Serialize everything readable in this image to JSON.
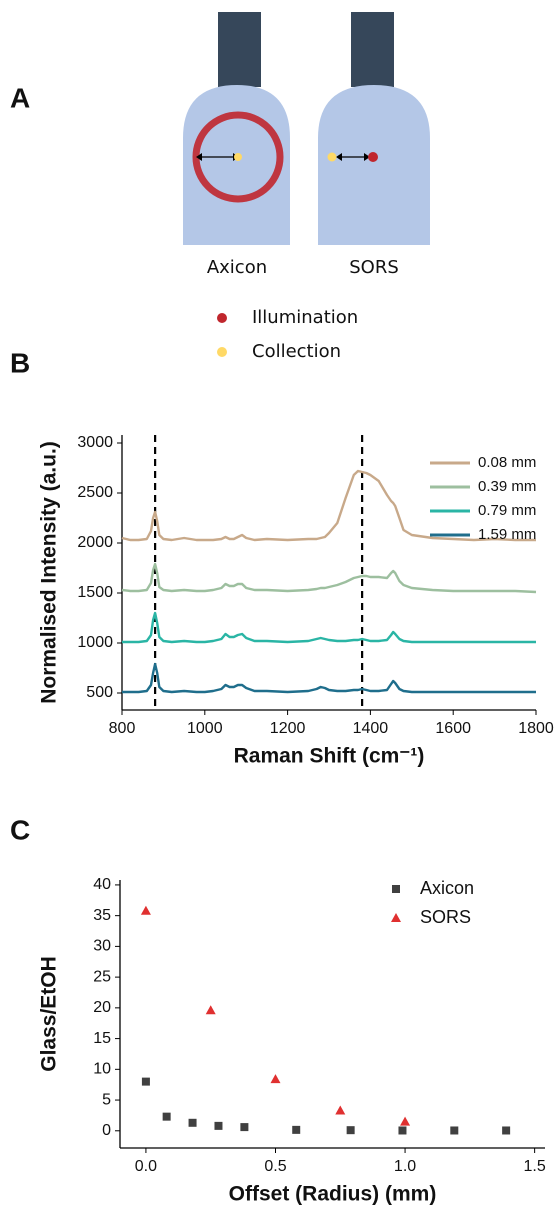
{
  "diagram": {
    "label": "A",
    "probes": [
      "Axicon",
      "SORS"
    ],
    "legend": [
      "Illumination",
      "Collection"
    ]
  },
  "chart_data": [
    {
      "type": "line",
      "panel": "B",
      "xlabel": "Raman Shift (cm⁻¹)",
      "ylabel": "Normalised Intensity (a.u.)",
      "x": [
        800,
        820,
        840,
        860,
        870,
        875,
        880,
        885,
        890,
        900,
        920,
        950,
        980,
        1000,
        1020,
        1040,
        1050,
        1060,
        1070,
        1080,
        1090,
        1100,
        1120,
        1150,
        1200,
        1250,
        1270,
        1280,
        1290,
        1300,
        1320,
        1340,
        1360,
        1370,
        1380,
        1390,
        1400,
        1420,
        1440,
        1450,
        1455,
        1460,
        1470,
        1480,
        1500,
        1550,
        1600,
        1650,
        1700,
        1750,
        1800
      ],
      "series": [
        {
          "name": "0.08 mm",
          "color": "#c8a98a",
          "values": [
            2050,
            2030,
            2030,
            2040,
            2120,
            2250,
            2310,
            2220,
            2080,
            2040,
            2030,
            2050,
            2030,
            2030,
            2030,
            2040,
            2060,
            2040,
            2040,
            2060,
            2080,
            2050,
            2030,
            2040,
            2030,
            2040,
            2040,
            2050,
            2060,
            2100,
            2200,
            2450,
            2680,
            2720,
            2710,
            2700,
            2680,
            2620,
            2480,
            2420,
            2400,
            2370,
            2250,
            2130,
            2080,
            2050,
            2040,
            2030,
            2040,
            2030,
            2030
          ]
        },
        {
          "name": "0.39 mm",
          "color": "#9dbf9f",
          "values": [
            1530,
            1520,
            1520,
            1530,
            1600,
            1730,
            1790,
            1700,
            1560,
            1530,
            1520,
            1530,
            1520,
            1520,
            1530,
            1550,
            1590,
            1570,
            1570,
            1590,
            1590,
            1550,
            1530,
            1530,
            1520,
            1530,
            1540,
            1550,
            1550,
            1560,
            1580,
            1610,
            1650,
            1660,
            1670,
            1670,
            1660,
            1660,
            1650,
            1700,
            1720,
            1700,
            1620,
            1580,
            1550,
            1530,
            1520,
            1520,
            1520,
            1520,
            1510
          ]
        },
        {
          "name": "0.79 mm",
          "color": "#2ab5a5",
          "values": [
            1010,
            1010,
            1010,
            1020,
            1080,
            1230,
            1300,
            1200,
            1060,
            1020,
            1010,
            1020,
            1010,
            1010,
            1020,
            1040,
            1090,
            1060,
            1060,
            1080,
            1090,
            1050,
            1020,
            1020,
            1010,
            1020,
            1040,
            1050,
            1040,
            1030,
            1020,
            1020,
            1030,
            1030,
            1040,
            1030,
            1020,
            1020,
            1030,
            1080,
            1110,
            1090,
            1040,
            1020,
            1010,
            1010,
            1010,
            1010,
            1010,
            1010,
            1010
          ]
        },
        {
          "name": "1.59 mm",
          "color": "#1f6e8c",
          "values": [
            510,
            510,
            510,
            520,
            580,
            700,
            790,
            700,
            560,
            520,
            510,
            520,
            510,
            510,
            520,
            540,
            580,
            560,
            560,
            580,
            580,
            550,
            520,
            520,
            510,
            520,
            540,
            560,
            550,
            530,
            520,
            520,
            530,
            530,
            540,
            530,
            520,
            520,
            530,
            590,
            620,
            600,
            540,
            520,
            510,
            510,
            510,
            510,
            510,
            510,
            510
          ]
        }
      ],
      "vlines": [
        880,
        1380
      ],
      "xlim": [
        800,
        1800
      ],
      "xticks": [
        800,
        1000,
        1200,
        1400,
        1600,
        1800
      ],
      "ylim": [
        330,
        3080
      ],
      "yticks": [
        500,
        1000,
        1500,
        2000,
        2500,
        3000
      ]
    },
    {
      "type": "scatter",
      "panel": "C",
      "xlabel": "Offset (Radius) (mm)",
      "ylabel": "Glass/EtOH",
      "series": [
        {
          "name": "Axicon",
          "color": "#404040",
          "marker": "square",
          "x": [
            0,
            0.08,
            0.18,
            0.28,
            0.38,
            0.58,
            0.79,
            0.99,
            1.19,
            1.39
          ],
          "values": [
            8,
            2.3,
            1.3,
            0.8,
            0.6,
            0.15,
            0.1,
            0.05,
            0.05,
            0.05
          ]
        },
        {
          "name": "SORS",
          "color": "#e03030",
          "marker": "triangle",
          "x": [
            0,
            0.25,
            0.5,
            0.75,
            1.0
          ],
          "values": [
            35.8,
            19.6,
            8.4,
            3.3,
            1.5
          ]
        }
      ],
      "xlim": [
        -0.1,
        1.54
      ],
      "xticks": [
        {
          "value": 0,
          "label": "0.0"
        },
        {
          "value": 0.5,
          "label": "0.5"
        },
        {
          "value": 1,
          "label": "1.0"
        },
        {
          "value": 1.5,
          "label": "1.5"
        }
      ],
      "ylim": [
        -2.8,
        40.8
      ],
      "yticks": [
        0,
        5,
        10,
        15,
        20,
        25,
        30,
        35,
        40
      ]
    }
  ]
}
